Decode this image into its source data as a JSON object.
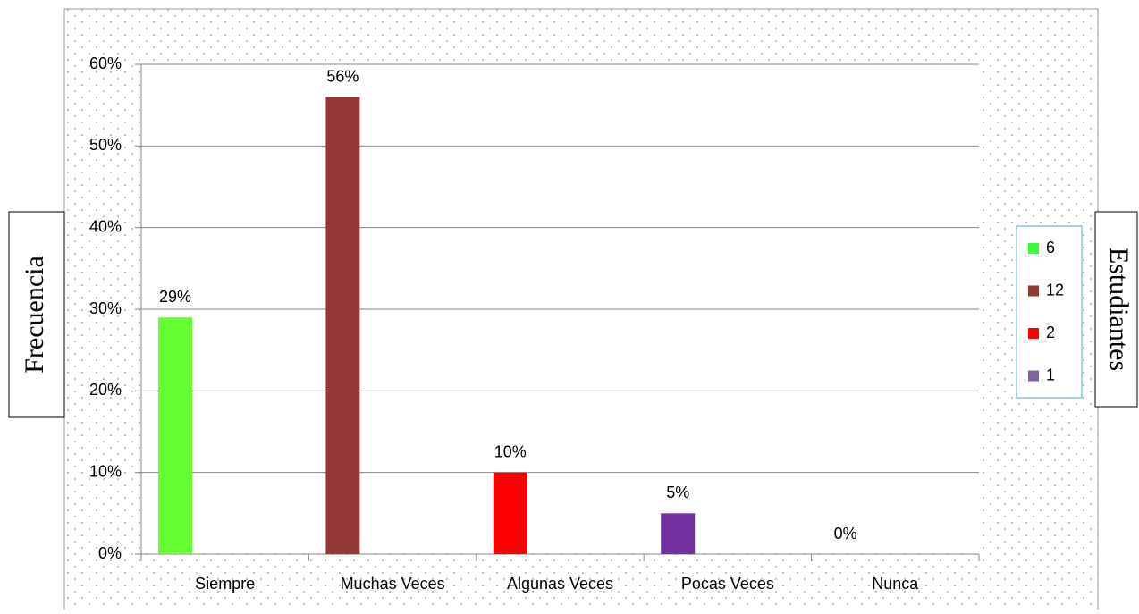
{
  "chart_data": {
    "type": "bar",
    "categories": [
      "Siempre",
      "Muchas Veces",
      "Algunas Veces",
      "Pocas Veces",
      "Nunca"
    ],
    "values": [
      29,
      56,
      10,
      5,
      0
    ],
    "value_labels": [
      "29%",
      "56%",
      "10%",
      "5%",
      "0%"
    ],
    "colors": [
      "#66ff33",
      "#953735",
      "#ff0000",
      "#7030a0",
      "#4f81bd"
    ],
    "ylim": [
      0,
      60
    ],
    "yticks": [
      {
        "value": 0,
        "label": "0%"
      },
      {
        "value": 10,
        "label": "10%"
      },
      {
        "value": 20,
        "label": "20%"
      },
      {
        "value": 30,
        "label": "30%"
      },
      {
        "value": 40,
        "label": "40%"
      },
      {
        "value": 50,
        "label": "50%"
      },
      {
        "value": 60,
        "label": "60%"
      }
    ],
    "grid": true,
    "y_label": "Frecuencia",
    "right_label": "Estudiantes",
    "legend": [
      {
        "label": "6",
        "color": "#33ff33"
      },
      {
        "label": "12",
        "color": "#953735"
      },
      {
        "label": "2",
        "color": "#ff0000"
      },
      {
        "label": "1",
        "color": "#8064a2"
      }
    ]
  }
}
